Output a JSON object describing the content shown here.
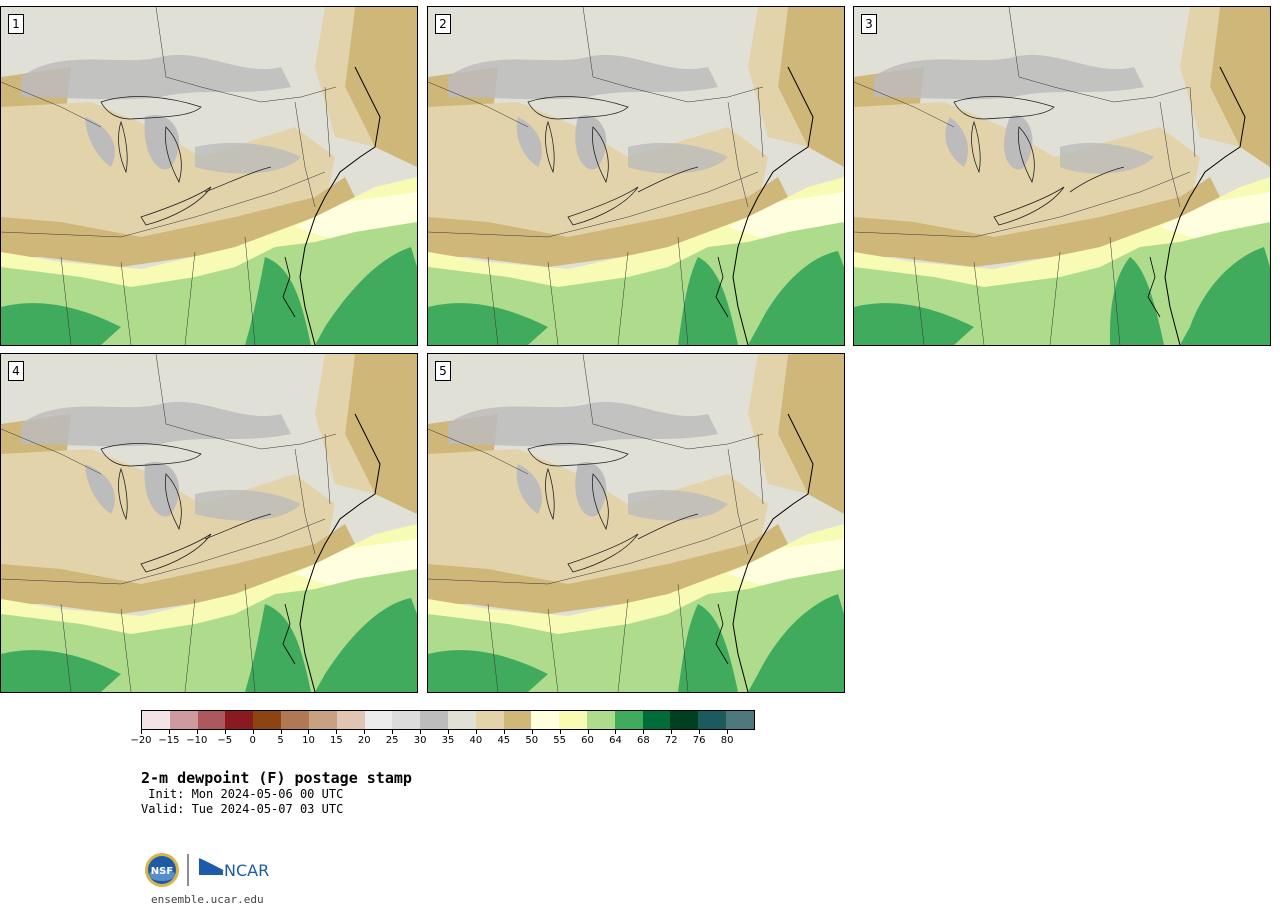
{
  "panels": [
    {
      "label": "1"
    },
    {
      "label": "2"
    },
    {
      "label": "3"
    },
    {
      "label": "4"
    },
    {
      "label": "5"
    }
  ],
  "colorbar": {
    "colors": [
      "#f2e4e4",
      "#cc9a9f",
      "#ad575f",
      "#8a1a1f",
      "#8b4513",
      "#b07853",
      "#c8a082",
      "#e0c4b4",
      "#ececec",
      "#dcdcdc",
      "#bcbcbc",
      "#e0e0d6",
      "#e2d3aa",
      "#cfb77a",
      "#ffffe0",
      "#f7fbb4",
      "#aedc8c",
      "#41ab5d",
      "#006d38",
      "#003f23",
      "#1b5b5e",
      "#4f787e"
    ],
    "tick_labels": [
      "−20",
      "−15",
      "−10",
      "−5",
      "0",
      "5",
      "10",
      "15",
      "20",
      "25",
      "30",
      "35",
      "40",
      "45",
      "50",
      "55",
      "60",
      "64",
      "68",
      "72",
      "76",
      "80"
    ]
  },
  "title": "2-m dewpoint (F) postage stamp",
  "init_line": " Init: Mon 2024-05-06 00 UTC",
  "valid_line": "Valid: Tue 2024-05-07 03 UTC",
  "logo": {
    "nsf_text": "NSF",
    "ncar_text": "NCAR"
  },
  "footer_url": "ensemble.ucar.edu"
}
